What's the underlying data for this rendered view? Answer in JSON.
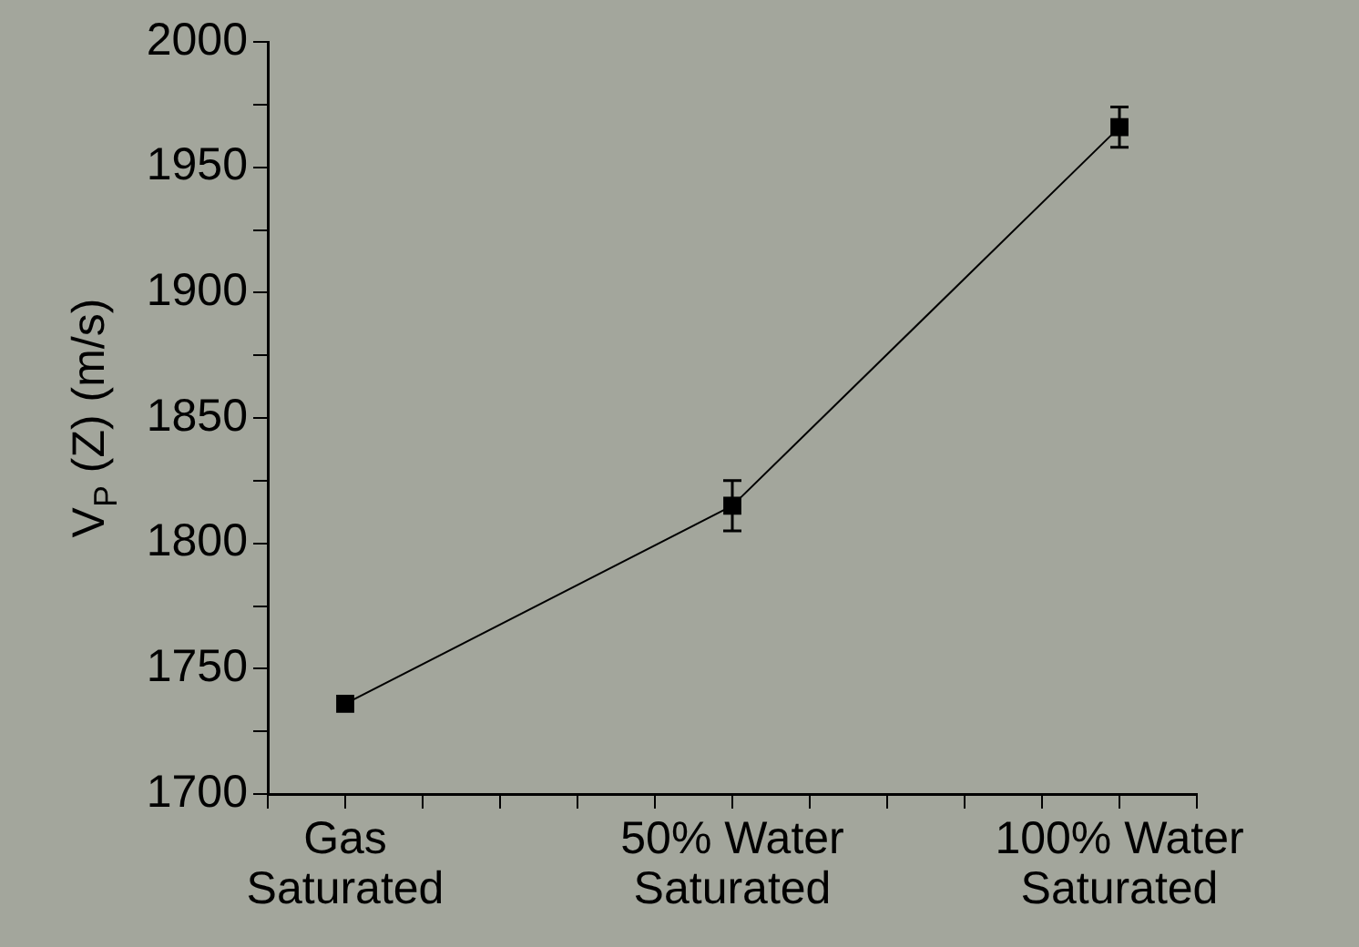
{
  "chart_data": {
    "type": "line",
    "ylabel": "V$_{P}$ (Z) (m/s)",
    "categories": [
      null,
      "Gas Saturated",
      null,
      null,
      null,
      null,
      "50% Water Saturated",
      null,
      null,
      null,
      null,
      "100% Water Saturated",
      null
    ],
    "series": [
      {
        "color": "#000000",
        "values": [
          null,
          1736,
          null,
          null,
          null,
          null,
          1815,
          null,
          null,
          null,
          null,
          1966,
          null
        ],
        "errors": [
          null,
          null,
          null,
          null,
          null,
          null,
          10,
          null,
          null,
          null,
          null,
          8,
          null
        ]
      }
    ],
    "ylim": [
      1700,
      2000
    ],
    "yticks": [
      1700,
      {
        "value": 1725,
        "label": null
      },
      1750,
      {
        "value": 1775,
        "label": null
      },
      1800,
      {
        "value": 1825,
        "label": null
      },
      1850,
      {
        "value": 1875,
        "label": null
      },
      1900,
      {
        "value": 1925,
        "label": null
      },
      1950,
      {
        "value": 1975,
        "label": null
      },
      2000
    ],
    "marker": "square",
    "line_style": "solid",
    "grid": false,
    "legend": false
  }
}
